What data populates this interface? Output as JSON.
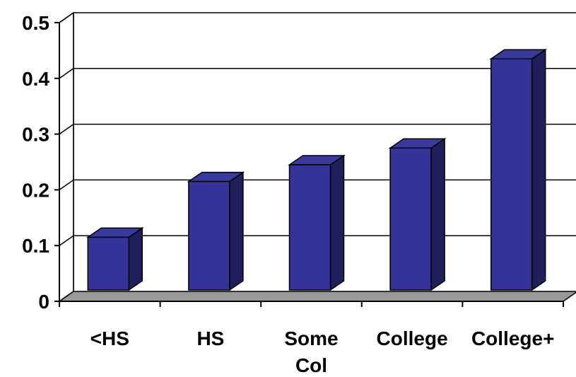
{
  "chart_data": {
    "type": "bar",
    "style": "3d",
    "title": "",
    "xlabel": "",
    "ylabel": "",
    "categories": [
      [
        "<HS"
      ],
      [
        "HS"
      ],
      [
        "Some",
        "Col"
      ],
      [
        "College"
      ],
      [
        "College+"
      ]
    ],
    "values": [
      0.115,
      0.215,
      0.245,
      0.275,
      0.435
    ],
    "ylim": [
      0,
      0.5
    ],
    "yticks": [
      "0",
      "0.1",
      "0.2",
      "0.3",
      "0.4",
      "0.5"
    ],
    "grid": true,
    "legend": "none",
    "colors": {
      "bar_front": "#333399",
      "bar_top": "#3a3a9e",
      "bar_side": "#1f1f5c",
      "floor": "#999999",
      "wall": "#ffffff",
      "line": "#000000"
    }
  }
}
